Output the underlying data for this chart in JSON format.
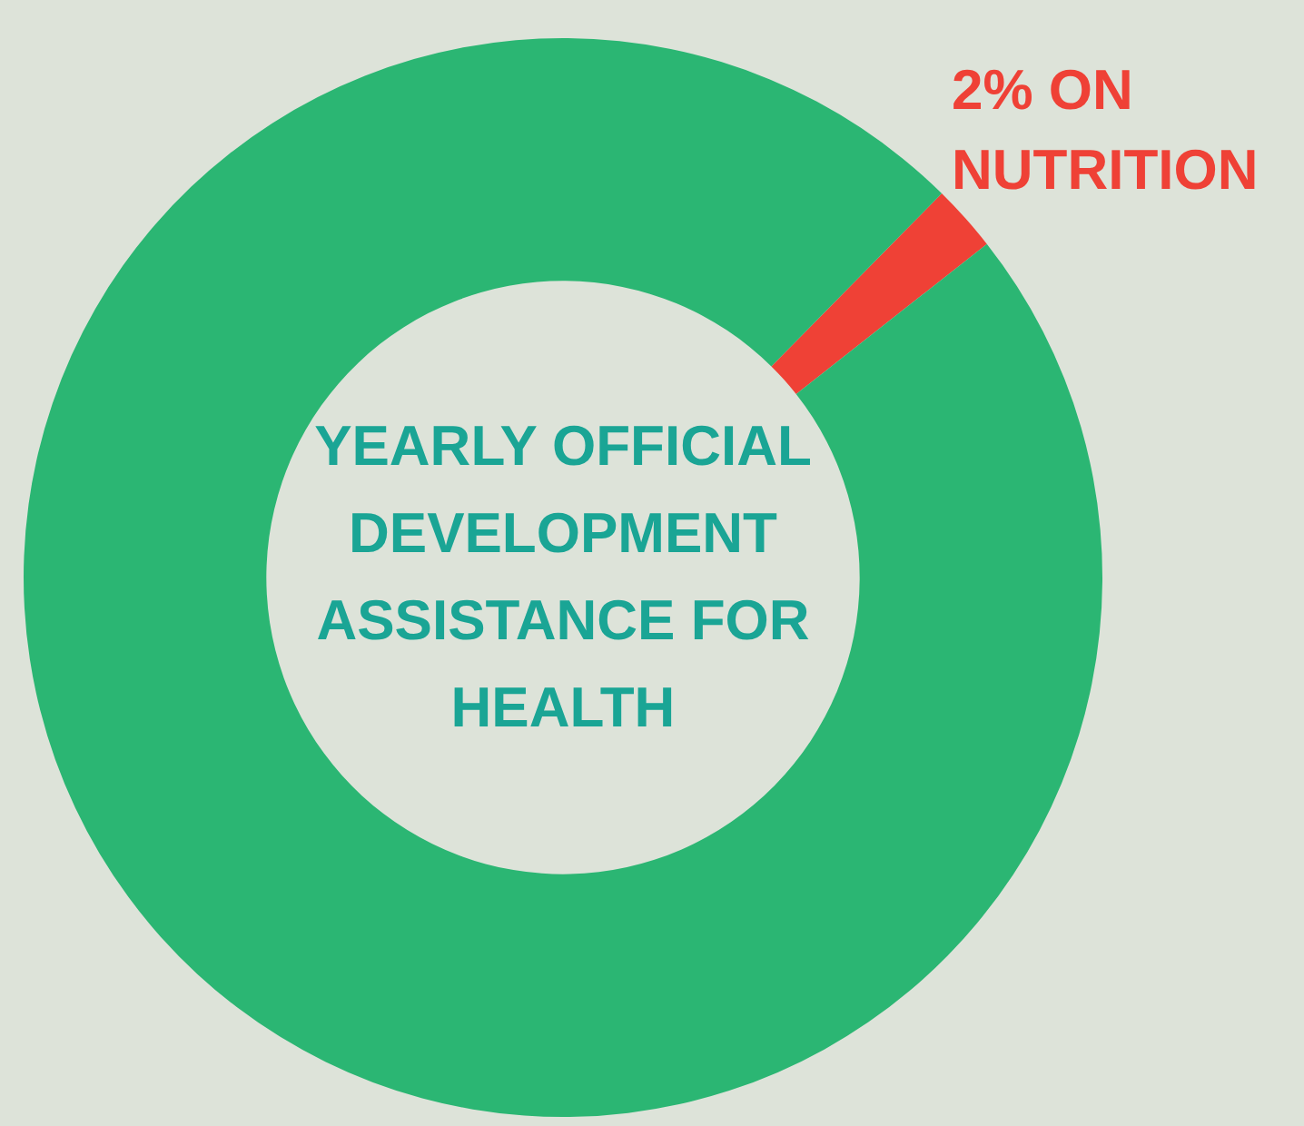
{
  "chart_data": {
    "type": "donut",
    "title": "YEARLY OFFICIAL DEVELOPMENT ASSISTANCE FOR HEALTH",
    "categories": [
      null,
      null
    ],
    "values": [
      2,
      98
    ],
    "colors": [
      "#ef4136",
      "#2bb673"
    ],
    "value_labels": [
      "2% ON NUTRITION",
      null
    ],
    "legend": false
  }
}
